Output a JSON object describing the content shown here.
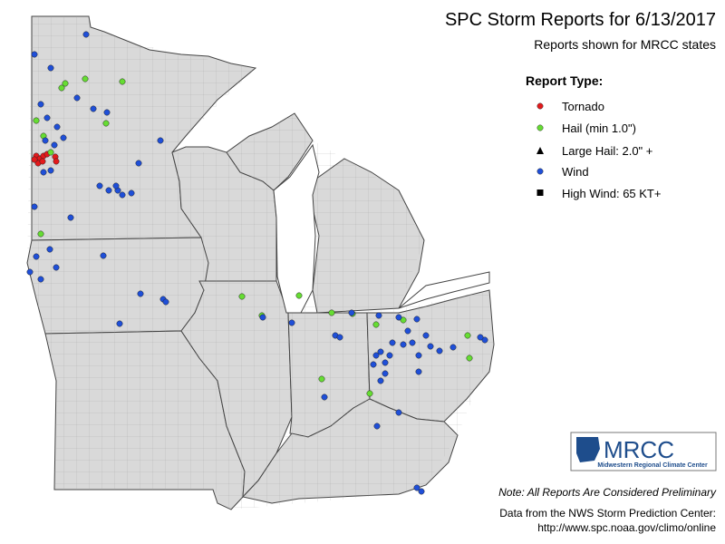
{
  "header": {
    "title": "SPC Storm Reports for 6/13/2017",
    "subtitle": "Reports shown for MRCC states"
  },
  "legend": {
    "title": "Report Type:",
    "items": [
      "Tornado",
      "Hail (min 1.0\")",
      "Large Hail: 2.0\" +",
      "Wind",
      "High Wind: 65 KT+"
    ]
  },
  "logo": {
    "name": "MRCC",
    "full_name": "Midwestern Regional Climate Center"
  },
  "footer": {
    "note": "Note: All Reports Are Considered Preliminary",
    "source": "Data from the NWS Storm Prediction Center:",
    "url": "http://www.spc.noaa.gov/climo/online"
  }
}
